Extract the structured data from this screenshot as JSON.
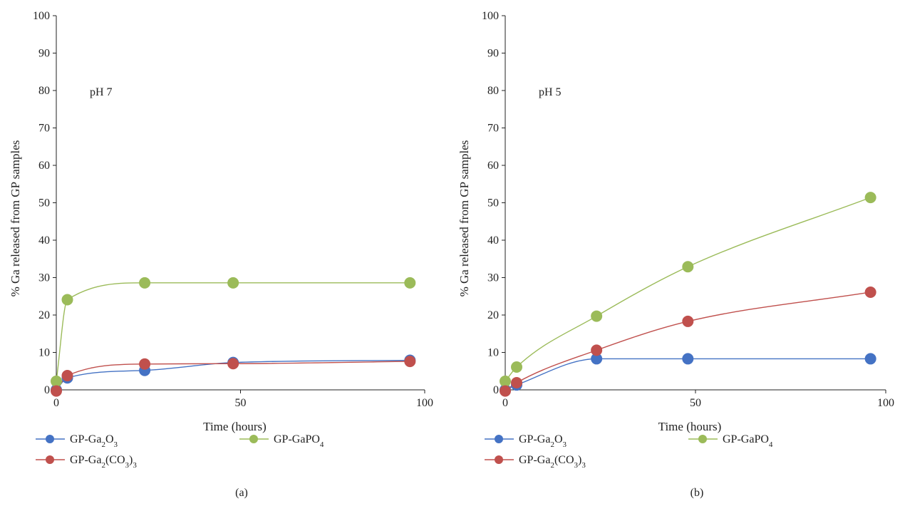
{
  "figure": {
    "panel_labels": [
      "(a)",
      "(b)"
    ]
  },
  "colors": {
    "series": [
      "#4472C4",
      "#9BBB59",
      "#C0504D"
    ],
    "axis": "#222222"
  },
  "chart_data": [
    {
      "type": "line",
      "panel": "(a)",
      "note": "pH 7",
      "title": "",
      "xlabel": "Time (hours)",
      "ylabel": "% Ga released from GP samples",
      "xlim": [
        0,
        100
      ],
      "ylim": [
        0,
        100
      ],
      "xticks": [
        0,
        50,
        100
      ],
      "yticks": [
        0,
        10,
        20,
        30,
        40,
        50,
        60,
        70,
        80,
        90,
        100
      ],
      "grid": false,
      "legend": "bottom",
      "series": [
        {
          "name": "GP-Ga2O3",
          "name_base": "GP-Ga",
          "name_parts": [
            "2",
            "O",
            "3"
          ],
          "color": "#4472C4",
          "x": [
            0,
            3,
            24,
            48,
            96
          ],
          "y": [
            0,
            3.2,
            5.2,
            7.3,
            7.9
          ]
        },
        {
          "name": "GP-GaPO4",
          "name_base": "GP-GaPO",
          "name_parts": [
            "4"
          ],
          "color": "#9BBB59",
          "x": [
            0,
            3,
            24,
            48,
            96
          ],
          "y": [
            2.3,
            24.1,
            28.6,
            28.6,
            28.6
          ]
        },
        {
          "name": "GP-Ga2(CO3)3",
          "name_base": "GP-Ga",
          "name_parts": [
            "2",
            "(CO",
            "3",
            ")",
            "3"
          ],
          "color": "#C0504D",
          "x": [
            0,
            3,
            24,
            48,
            96
          ],
          "y": [
            -0.3,
            3.8,
            6.9,
            7.0,
            7.6
          ]
        }
      ]
    },
    {
      "type": "line",
      "panel": "(b)",
      "note": "pH 5",
      "title": "",
      "xlabel": "Time (hours)",
      "ylabel": "% Ga released from GP samples",
      "xlim": [
        0,
        100
      ],
      "ylim": [
        0,
        100
      ],
      "xticks": [
        0,
        50,
        100
      ],
      "yticks": [
        0,
        10,
        20,
        30,
        40,
        50,
        60,
        70,
        80,
        90,
        100
      ],
      "grid": false,
      "legend": "bottom",
      "series": [
        {
          "name": "GP-Ga2O3",
          "name_base": "GP-Ga",
          "name_parts": [
            "2",
            "O",
            "3"
          ],
          "color": "#4472C4",
          "x": [
            0,
            3,
            24,
            48,
            96
          ],
          "y": [
            0,
            1.3,
            8.3,
            8.3,
            8.3
          ]
        },
        {
          "name": "GP-GaPO4",
          "name_base": "GP-GaPO",
          "name_parts": [
            "4"
          ],
          "color": "#9BBB59",
          "x": [
            0,
            3,
            24,
            48,
            96
          ],
          "y": [
            2.3,
            6.1,
            19.7,
            32.9,
            51.4
          ]
        },
        {
          "name": "GP-Ga2(CO3)3",
          "name_base": "GP-Ga",
          "name_parts": [
            "2",
            "(CO",
            "3",
            ")",
            "3"
          ],
          "color": "#C0504D",
          "x": [
            0,
            3,
            24,
            48,
            96
          ],
          "y": [
            -0.3,
            1.9,
            10.6,
            18.3,
            26.1
          ]
        }
      ]
    }
  ]
}
